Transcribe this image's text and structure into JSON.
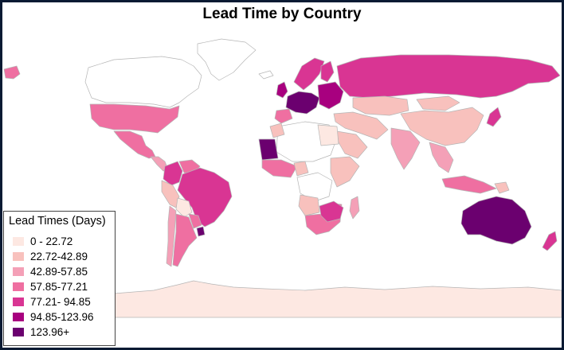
{
  "map": {
    "title": "Lead Time by Country",
    "legend": {
      "title": "Lead Times (Days)",
      "items": [
        {
          "label": "0 - 22.72",
          "color": "#fde8e2"
        },
        {
          "label": "22.72-42.89",
          "color": "#f8c1bd"
        },
        {
          "label": "42.89-57.85",
          "color": "#f4a0b7"
        },
        {
          "label": "57.85-77.21",
          "color": "#ef6fa1"
        },
        {
          "label": "77.21- 94.85",
          "color": "#d93593"
        },
        {
          "label": "94.85-123.96",
          "color": "#a8007f"
        },
        {
          "label": "123.96+",
          "color": "#6b006f"
        }
      ]
    },
    "regions": [
      {
        "name": "canada",
        "bin": null
      },
      {
        "name": "alaska",
        "bin": 3
      },
      {
        "name": "greenland",
        "bin": null
      },
      {
        "name": "united-states",
        "bin": 3
      },
      {
        "name": "mexico",
        "bin": 3
      },
      {
        "name": "central-america",
        "bin": 2
      },
      {
        "name": "colombia",
        "bin": 4
      },
      {
        "name": "venezuela",
        "bin": 3
      },
      {
        "name": "brazil",
        "bin": 4
      },
      {
        "name": "peru",
        "bin": 1
      },
      {
        "name": "bolivia",
        "bin": 0
      },
      {
        "name": "paraguay",
        "bin": 3
      },
      {
        "name": "uruguay",
        "bin": 6
      },
      {
        "name": "chile",
        "bin": 2
      },
      {
        "name": "argentina",
        "bin": 3
      },
      {
        "name": "iceland",
        "bin": null
      },
      {
        "name": "uk-ireland",
        "bin": 5
      },
      {
        "name": "scandinavia",
        "bin": 4
      },
      {
        "name": "finland",
        "bin": 4
      },
      {
        "name": "western-europe",
        "bin": 6
      },
      {
        "name": "eastern-europe",
        "bin": 5
      },
      {
        "name": "iberia",
        "bin": 3
      },
      {
        "name": "russia",
        "bin": 4
      },
      {
        "name": "kazakhstan",
        "bin": 1
      },
      {
        "name": "china",
        "bin": 1
      },
      {
        "name": "mongolia",
        "bin": 1
      },
      {
        "name": "middle-east",
        "bin": 1
      },
      {
        "name": "saudi-arabia",
        "bin": 1
      },
      {
        "name": "india",
        "bin": 2
      },
      {
        "name": "southeast-asia",
        "bin": 2
      },
      {
        "name": "indonesia",
        "bin": 3
      },
      {
        "name": "japan",
        "bin": 4
      },
      {
        "name": "north-africa",
        "bin": null
      },
      {
        "name": "morocco",
        "bin": 1
      },
      {
        "name": "mauritania-mali",
        "bin": 6
      },
      {
        "name": "libya-egypt",
        "bin": 0
      },
      {
        "name": "west-africa",
        "bin": 3
      },
      {
        "name": "nigeria",
        "bin": 1
      },
      {
        "name": "central-africa",
        "bin": null
      },
      {
        "name": "east-africa",
        "bin": 1
      },
      {
        "name": "angola",
        "bin": 1
      },
      {
        "name": "southern-africa",
        "bin": 3
      },
      {
        "name": "south-africa-east",
        "bin": 4
      },
      {
        "name": "madagascar",
        "bin": 2
      },
      {
        "name": "australia",
        "bin": 6
      },
      {
        "name": "new-zealand",
        "bin": 4
      },
      {
        "name": "papua",
        "bin": 1
      },
      {
        "name": "antarctica",
        "bin": 0
      }
    ]
  }
}
